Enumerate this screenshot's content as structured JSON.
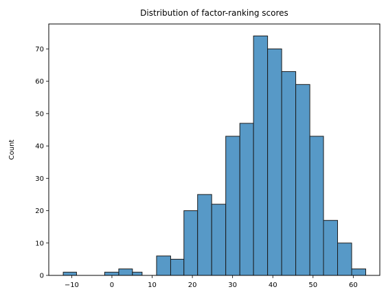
{
  "chart_data": {
    "type": "bar",
    "title": "Distribution of factor-ranking scores",
    "xlabel": "",
    "ylabel": "Count",
    "xlim": [
      -15.7,
      66.6
    ],
    "ylim": [
      0,
      77.7
    ],
    "x_ticks": [
      -10,
      0,
      10,
      20,
      30,
      40,
      50,
      60
    ],
    "y_ticks": [
      0,
      10,
      20,
      30,
      40,
      50,
      60,
      70
    ],
    "grid": false,
    "bar_color": "#5799c7",
    "bar_edge_color": "#1a1a1a",
    "bins": [
      {
        "x0": -12.1,
        "x1": -8.8,
        "count": 1
      },
      {
        "x0": -8.8,
        "x1": -5.3,
        "count": 0
      },
      {
        "x0": -5.3,
        "x1": -1.8,
        "count": 0
      },
      {
        "x0": -1.8,
        "x1": 1.7,
        "count": 1
      },
      {
        "x0": 1.7,
        "x1": 5.1,
        "count": 2
      },
      {
        "x0": 5.1,
        "x1": 7.5,
        "count": 1
      },
      {
        "x0": 7.5,
        "x1": 11.1,
        "count": 0
      },
      {
        "x0": 11.1,
        "x1": 14.6,
        "count": 6
      },
      {
        "x0": 14.6,
        "x1": 17.9,
        "count": 5
      },
      {
        "x0": 17.9,
        "x1": 21.3,
        "count": 20
      },
      {
        "x0": 21.3,
        "x1": 24.8,
        "count": 25
      },
      {
        "x0": 24.8,
        "x1": 28.3,
        "count": 22
      },
      {
        "x0": 28.3,
        "x1": 31.8,
        "count": 43
      },
      {
        "x0": 31.8,
        "x1": 35.2,
        "count": 47
      },
      {
        "x0": 35.2,
        "x1": 38.7,
        "count": 74
      },
      {
        "x0": 38.7,
        "x1": 42.2,
        "count": 70
      },
      {
        "x0": 42.2,
        "x1": 45.7,
        "count": 63
      },
      {
        "x0": 45.7,
        "x1": 49.2,
        "count": 59
      },
      {
        "x0": 49.2,
        "x1": 52.6,
        "count": 43
      },
      {
        "x0": 52.6,
        "x1": 56.1,
        "count": 17
      },
      {
        "x0": 56.1,
        "x1": 59.6,
        "count": 10
      },
      {
        "x0": 59.6,
        "x1": 63.1,
        "count": 2
      }
    ]
  }
}
